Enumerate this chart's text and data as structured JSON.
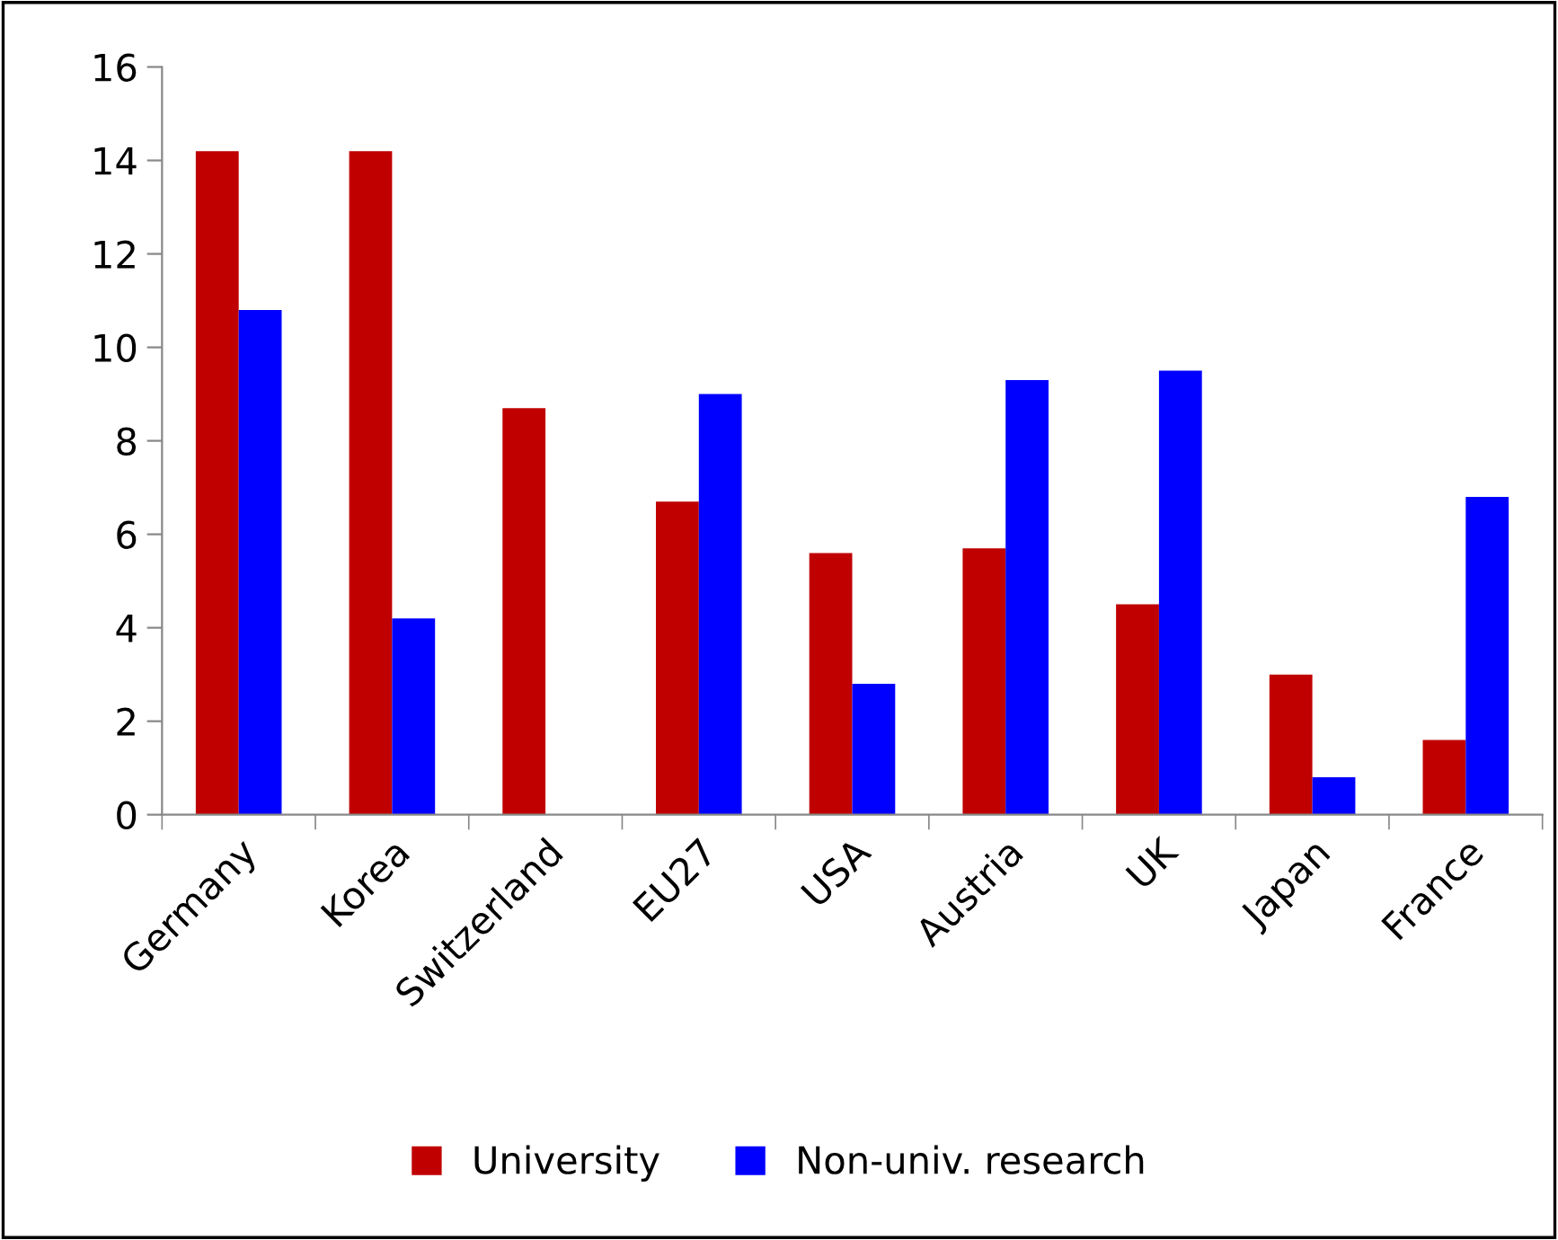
{
  "chart_data": {
    "type": "bar",
    "categories": [
      "Germany",
      "Korea",
      "Switzerland",
      "EU27",
      "USA",
      "Austria",
      "UK",
      "Japan",
      "France"
    ],
    "series": [
      {
        "name": "University",
        "color": "#c00000",
        "values": [
          14.2,
          14.2,
          8.7,
          6.7,
          5.6,
          5.7,
          4.5,
          3.0,
          1.6
        ]
      },
      {
        "name": "Non-univ. research",
        "color": "#0000ff",
        "values": [
          10.8,
          4.2,
          null,
          9.0,
          2.8,
          9.3,
          9.5,
          0.8,
          6.8
        ]
      }
    ],
    "ylim": [
      0,
      16
    ],
    "yticks": [
      0,
      2,
      4,
      6,
      8,
      10,
      12,
      14,
      16
    ],
    "grid": false,
    "legend": "bottom"
  }
}
